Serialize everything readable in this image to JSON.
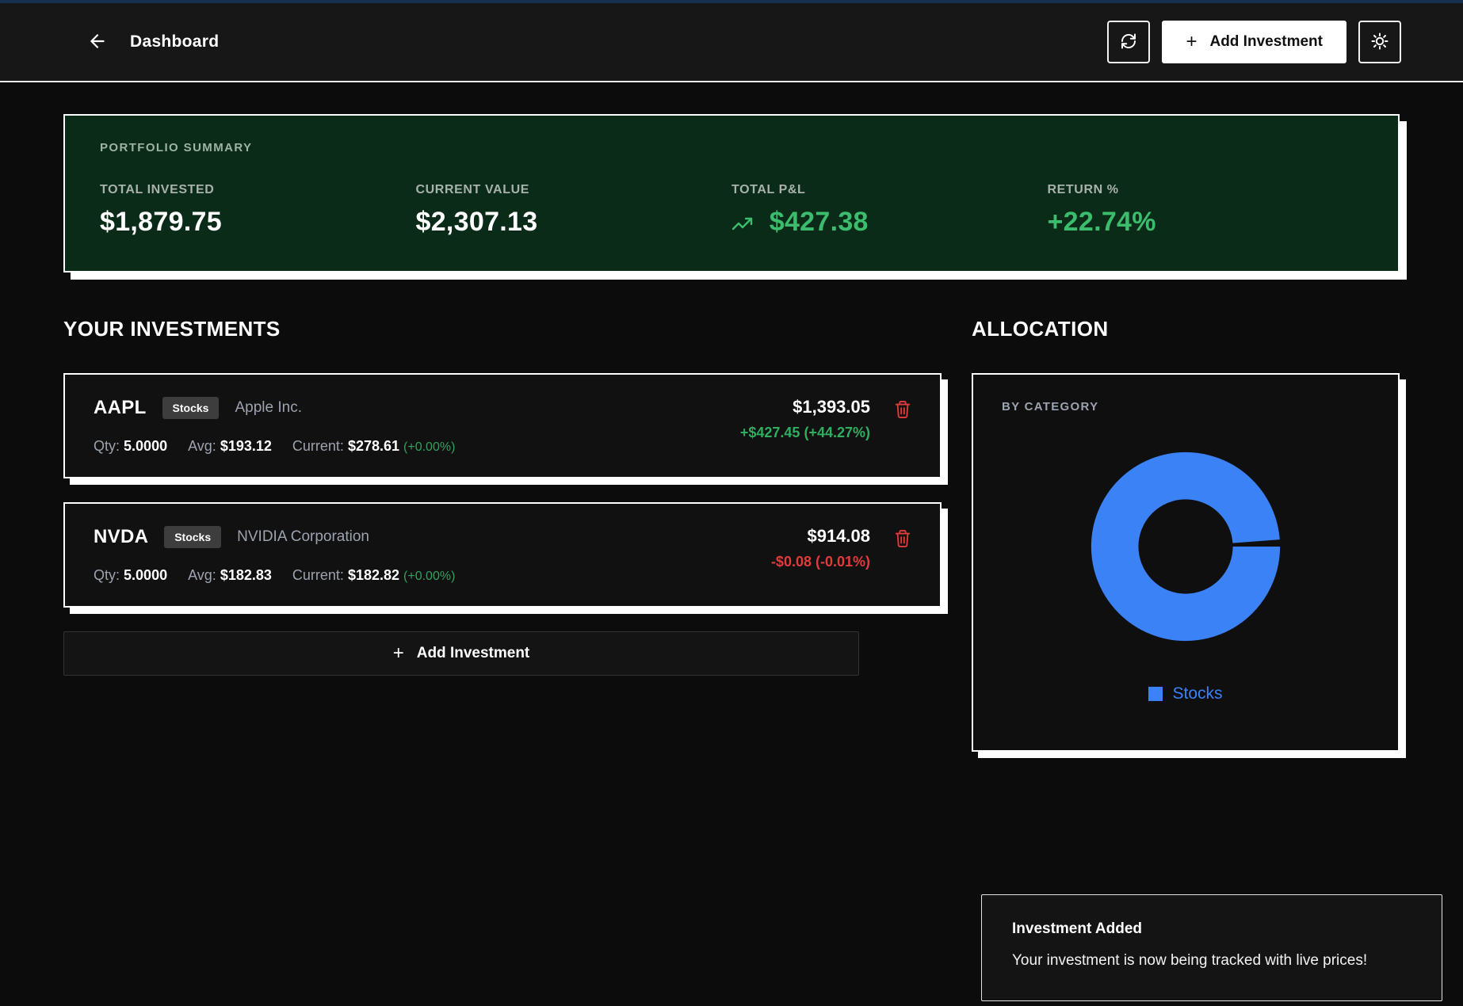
{
  "header": {
    "title": "Dashboard",
    "add_button_label": "Add Investment",
    "plus_glyph": "+"
  },
  "summary": {
    "label": "PORTFOLIO SUMMARY",
    "stats": [
      {
        "label": "TOTAL INVESTED",
        "value": "$1,879.75"
      },
      {
        "label": "CURRENT VALUE",
        "value": "$2,307.13"
      },
      {
        "label": "TOTAL P&L",
        "value": "$427.38"
      },
      {
        "label": "RETURN %",
        "value": "+22.74%"
      }
    ]
  },
  "investments": {
    "heading": "YOUR INVESTMENTS",
    "qty_label": "Qty:",
    "avg_label": "Avg:",
    "current_label": "Current:",
    "add_button_label": "Add Investment",
    "plus_glyph": "+",
    "items": [
      {
        "ticker": "AAPL",
        "badge": "Stocks",
        "name": "Apple Inc.",
        "qty": "5.0000",
        "avg": "$193.12",
        "current": "$278.61",
        "current_change": "(+0.00%)",
        "value": "$1,393.05",
        "pl": "+$427.45 (+44.27%)"
      },
      {
        "ticker": "NVDA",
        "badge": "Stocks",
        "name": "NVIDIA Corporation",
        "qty": "5.0000",
        "avg": "$182.83",
        "current": "$182.82",
        "current_change": "(+0.00%)",
        "value": "$914.08",
        "pl": "-$0.08 (-0.01%)"
      }
    ]
  },
  "allocation": {
    "heading": "ALLOCATION",
    "card_label": "BY CATEGORY",
    "chart_data": {
      "type": "pie",
      "subtype": "donut",
      "categories": [
        "Stocks"
      ],
      "values": [
        100
      ],
      "colors": [
        "#3b82f6"
      ],
      "legend": [
        {
          "label": "Stocks",
          "color": "#3b82f6"
        }
      ]
    }
  },
  "toast": {
    "title": "Investment Added",
    "message": "Your investment is now being tracked with live prices!"
  },
  "colors": {
    "green": "#3cbd6e",
    "red": "#e23b3b",
    "blue": "#3b82f6",
    "summary_bg": "#0b2b19"
  }
}
